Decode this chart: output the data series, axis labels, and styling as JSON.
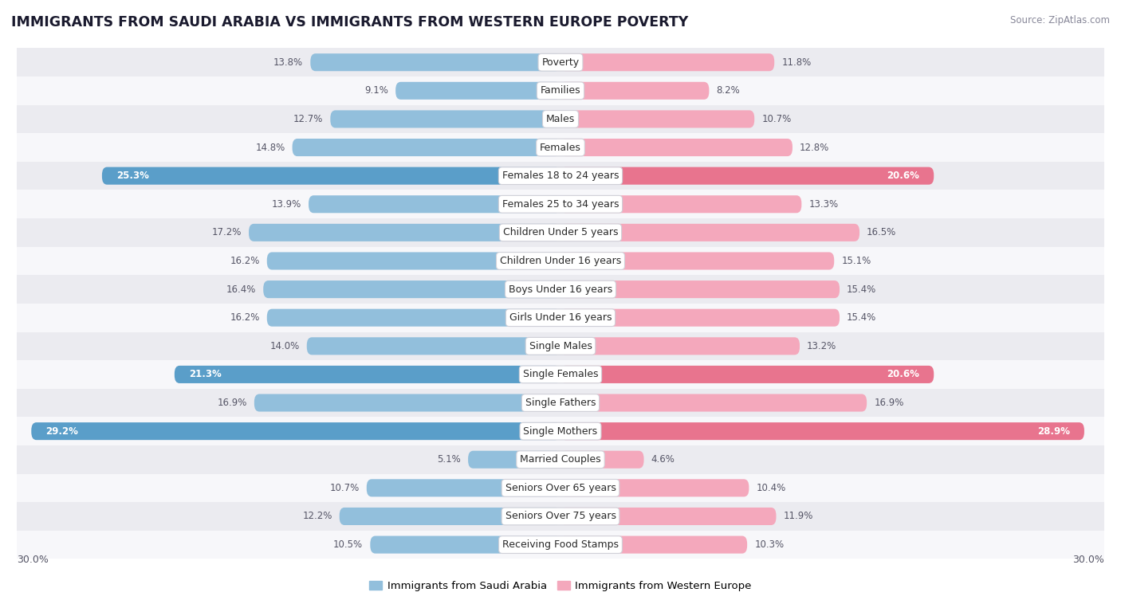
{
  "title": "IMMIGRANTS FROM SAUDI ARABIA VS IMMIGRANTS FROM WESTERN EUROPE POVERTY",
  "source": "Source: ZipAtlas.com",
  "categories": [
    "Poverty",
    "Families",
    "Males",
    "Females",
    "Females 18 to 24 years",
    "Females 25 to 34 years",
    "Children Under 5 years",
    "Children Under 16 years",
    "Boys Under 16 years",
    "Girls Under 16 years",
    "Single Males",
    "Single Females",
    "Single Fathers",
    "Single Mothers",
    "Married Couples",
    "Seniors Over 65 years",
    "Seniors Over 75 years",
    "Receiving Food Stamps"
  ],
  "saudi_values": [
    13.8,
    9.1,
    12.7,
    14.8,
    25.3,
    13.9,
    17.2,
    16.2,
    16.4,
    16.2,
    14.0,
    21.3,
    16.9,
    29.2,
    5.1,
    10.7,
    12.2,
    10.5
  ],
  "western_values": [
    11.8,
    8.2,
    10.7,
    12.8,
    20.6,
    13.3,
    16.5,
    15.1,
    15.4,
    15.4,
    13.2,
    20.6,
    16.9,
    28.9,
    4.6,
    10.4,
    11.9,
    10.3
  ],
  "saudi_color": "#92bfdc",
  "western_color": "#f4a8bc",
  "highlight_saudi": [
    4,
    11,
    13
  ],
  "highlight_western": [
    4,
    11,
    13
  ],
  "highlight_saudi_color": "#5a9ec9",
  "highlight_western_color": "#e8748e",
  "bar_height": 0.62,
  "xlim": 30.0,
  "legend_saudi": "Immigrants from Saudi Arabia",
  "legend_western": "Immigrants from Western Europe",
  "background_row_light": "#ebebf0",
  "background_row_dark": "#dcdce5",
  "background_row_white": "#f7f7fa",
  "row_divider_color": "#cccccc",
  "label_fontsize": 9,
  "value_fontsize": 8.5,
  "title_fontsize": 12.5
}
